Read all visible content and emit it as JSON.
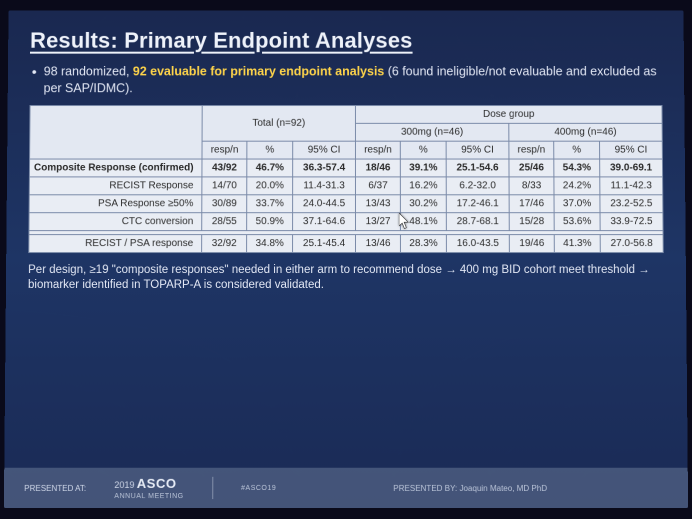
{
  "title": "Results: Primary Endpoint Analyses",
  "bullet_pre": "98 randomized, ",
  "bullet_hl": "92 evaluable for primary endpoint analysis",
  "bullet_post": " (6 found ineligible/not evaluable and excluded as per SAP/IDMC).",
  "table": {
    "group_total": "Total (n=92)",
    "group_dose": "Dose group",
    "dose_300": "300mg (n=46)",
    "dose_400": "400mg (n=46)",
    "col_respn": "resp/n",
    "col_pct": "%",
    "col_ci": "95% CI",
    "rows": [
      {
        "label": "Composite Response (confirmed)",
        "bold": true,
        "t": [
          "43/92",
          "46.7%",
          "36.3-57.4"
        ],
        "d3": [
          "18/46",
          "39.1%",
          "25.1-54.6"
        ],
        "d4": [
          "25/46",
          "54.3%",
          "39.0-69.1"
        ]
      },
      {
        "label": "RECIST Response",
        "t": [
          "14/70",
          "20.0%",
          "11.4-31.3"
        ],
        "d3": [
          "6/37",
          "16.2%",
          "6.2-32.0"
        ],
        "d4": [
          "8/33",
          "24.2%",
          "11.1-42.3"
        ]
      },
      {
        "label": "PSA Response ≥50%",
        "t": [
          "30/89",
          "33.7%",
          "24.0-44.5"
        ],
        "d3": [
          "13/43",
          "30.2%",
          "17.2-46.1"
        ],
        "d4": [
          "17/46",
          "37.0%",
          "23.2-52.5"
        ]
      },
      {
        "label": "CTC conversion",
        "t": [
          "28/55",
          "50.9%",
          "37.1-64.6"
        ],
        "d3": [
          "13/27",
          "48.1%",
          "28.7-68.1"
        ],
        "d4": [
          "15/28",
          "53.6%",
          "33.9-72.5"
        ]
      },
      {
        "label": "RECIST / PSA response",
        "gap": true,
        "t": [
          "32/92",
          "34.8%",
          "25.1-45.4"
        ],
        "d3": [
          "13/46",
          "28.3%",
          "16.0-43.5"
        ],
        "d4": [
          "19/46",
          "41.3%",
          "27.0-56.8"
        ]
      }
    ]
  },
  "footnote": "Per design, ≥19 \"composite responses\" needed in either arm to recommend dose → 400 mg BID cohort meet threshold → biomarker identified in TOPARP-A is considered validated.",
  "footer": {
    "presented_at": "PRESENTED AT:",
    "year": "2019",
    "asco": "ASCO",
    "meeting": "ANNUAL MEETING",
    "hashtag": "#ASCO19",
    "presenter_label": "PRESENTED BY:",
    "presenter": "Joaquin Mateo, MD PhD"
  },
  "colors": {
    "slide_bg_top": "#1a2850",
    "slide_bg_bot": "#1a2a55",
    "highlight": "#ffd54a",
    "table_bg": "#e9edf4",
    "table_border": "#7a8aa8"
  }
}
